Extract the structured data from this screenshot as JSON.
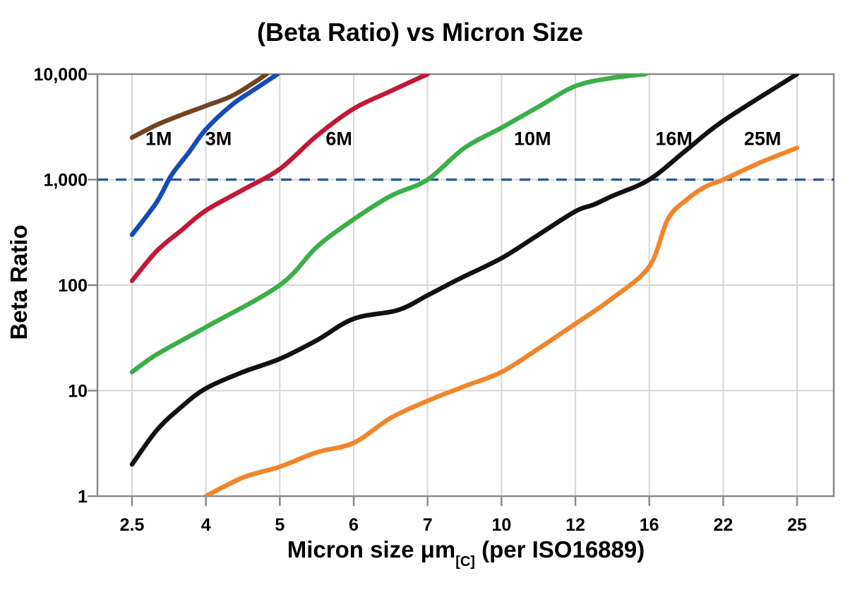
{
  "chart_data": {
    "type": "line",
    "title": "(Beta Ratio) vs Micron Size",
    "ylabel": "Beta Ratio",
    "xlabel": "Micron size μm[C] (per ISO16889)",
    "xlabel_parts": {
      "main": "Micron size μm",
      "sub": "[C]",
      "rest": " (per ISO16889)"
    },
    "x_scale": "ordinal-equal-spacing",
    "y_scale": "log",
    "ylim": [
      1,
      10000
    ],
    "grid": true,
    "legend_position": "inline-curve-labels",
    "x_tick_values": [
      2.5,
      4,
      5,
      6,
      7,
      10,
      12,
      16,
      22,
      25
    ],
    "x_tick_labels": [
      "2.5",
      "4",
      "5",
      "6",
      "7",
      "10",
      "12",
      "16",
      "22",
      "25"
    ],
    "y_tick_values": [
      1,
      10,
      100,
      1000,
      10000
    ],
    "y_tick_labels": [
      "1",
      "10",
      "100",
      "1,000",
      "10,000"
    ],
    "colors": {
      "grid": "#d6d6d6",
      "frame": "#8a8a8a",
      "tick": "#8a8a8a",
      "text": "#000000",
      "background": "#ffffff"
    },
    "reference_line": {
      "beta": 1000,
      "style": "dashed",
      "color": "#2e5c96"
    },
    "series": [
      {
        "name": "1M",
        "color": "#6e4523",
        "label": {
          "micron": 3.04,
          "beta": 2450
        },
        "points": [
          [
            2.5,
            2500
          ],
          [
            3,
            3300
          ],
          [
            3.5,
            4100
          ],
          [
            4,
            5000
          ],
          [
            4.35,
            6200
          ],
          [
            4.65,
            8300
          ],
          [
            4.82,
            10000
          ]
        ]
      },
      {
        "name": "3M",
        "color": "#144bb8",
        "label": {
          "micron": 4.17,
          "beta": 2450
        },
        "points": [
          [
            2.5,
            300
          ],
          [
            3,
            610
          ],
          [
            3.3,
            1100
          ],
          [
            3.65,
            1800
          ],
          [
            4,
            3000
          ],
          [
            4.35,
            5100
          ],
          [
            4.65,
            7100
          ],
          [
            4.97,
            10000
          ]
        ]
      },
      {
        "name": "6M",
        "color": "#c11836",
        "label": {
          "micron": 5.8,
          "beta": 2450
        },
        "points": [
          [
            2.5,
            110
          ],
          [
            3,
            210
          ],
          [
            3.5,
            330
          ],
          [
            4,
            510
          ],
          [
            4.5,
            800
          ],
          [
            5,
            1260
          ],
          [
            5.5,
            2600
          ],
          [
            6,
            4700
          ],
          [
            6.5,
            6900
          ],
          [
            7,
            10000
          ]
        ]
      },
      {
        "name": "10M",
        "color": "#3cae49",
        "label": {
          "micron": 10.84,
          "beta": 2450
        },
        "points": [
          [
            2.5,
            15
          ],
          [
            3,
            22
          ],
          [
            4,
            40
          ],
          [
            5,
            100
          ],
          [
            5.5,
            230
          ],
          [
            6,
            420
          ],
          [
            6.5,
            700
          ],
          [
            7,
            1000
          ],
          [
            8.5,
            2000
          ],
          [
            10,
            3100
          ],
          [
            11,
            4900
          ],
          [
            12,
            7700
          ],
          [
            14,
            9200
          ],
          [
            15.8,
            10000
          ]
        ]
      },
      {
        "name": "16M",
        "color": "#111111",
        "label": {
          "micron": 18.0,
          "beta": 2450
        },
        "points": [
          [
            2.5,
            2
          ],
          [
            3,
            4.2
          ],
          [
            3.5,
            7
          ],
          [
            4,
            10.5
          ],
          [
            4.5,
            15
          ],
          [
            5,
            20
          ],
          [
            5.5,
            30
          ],
          [
            6,
            48
          ],
          [
            6.6,
            58
          ],
          [
            7,
            80
          ],
          [
            8.3,
            115
          ],
          [
            10,
            180
          ],
          [
            11,
            300
          ],
          [
            12,
            500
          ],
          [
            13,
            580
          ],
          [
            14,
            700
          ],
          [
            16,
            1000
          ],
          [
            19,
            1900
          ],
          [
            22,
            3600
          ],
          [
            25,
            10000
          ]
        ]
      },
      {
        "name": "25M",
        "color": "#f0862c",
        "label": {
          "micron": 23.6,
          "beta": 2450
        },
        "points": [
          [
            4,
            1
          ],
          [
            4.5,
            1.5
          ],
          [
            5,
            1.9
          ],
          [
            5.5,
            2.6
          ],
          [
            6,
            3.2
          ],
          [
            6.5,
            5.5
          ],
          [
            7,
            8
          ],
          [
            8.5,
            11
          ],
          [
            10,
            15
          ],
          [
            11,
            25
          ],
          [
            12,
            43
          ],
          [
            14,
            75
          ],
          [
            16,
            150
          ],
          [
            17.5,
            420
          ],
          [
            19,
            640
          ],
          [
            20.5,
            850
          ],
          [
            22,
            1000
          ],
          [
            23.5,
            1450
          ],
          [
            25,
            2000
          ]
        ]
      }
    ]
  }
}
